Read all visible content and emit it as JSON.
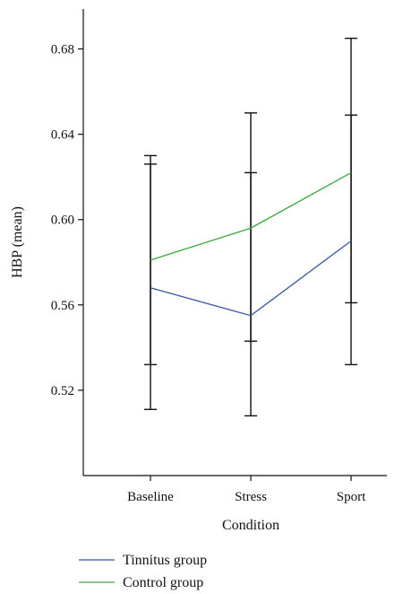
{
  "chart_data": {
    "type": "line",
    "xlabel": "Condition",
    "ylabel": "HBP (mean)",
    "categories": [
      "Baseline",
      "Stress",
      "Sport"
    ],
    "ylim": [
      0.48,
      0.7
    ],
    "yticks": [
      0.52,
      0.56,
      0.6,
      0.64,
      0.68
    ],
    "ytick_labels": [
      "0.52",
      "0.56",
      "0.60",
      "0.64",
      "0.68"
    ],
    "grid": false,
    "legend_position": "bottom-left",
    "series": [
      {
        "name": "Tinnitus group",
        "color": "#3a55a4",
        "values": [
          0.568,
          0.555,
          0.59
        ],
        "error_low": [
          0.511,
          0.508,
          0.532
        ],
        "error_high": [
          0.626,
          0.622,
          0.649
        ]
      },
      {
        "name": "Control group",
        "color": "#3aa83a",
        "values": [
          0.581,
          0.596,
          0.622
        ],
        "error_low": [
          0.532,
          0.543,
          0.561
        ],
        "error_high": [
          0.63,
          0.65,
          0.685
        ]
      }
    ]
  }
}
